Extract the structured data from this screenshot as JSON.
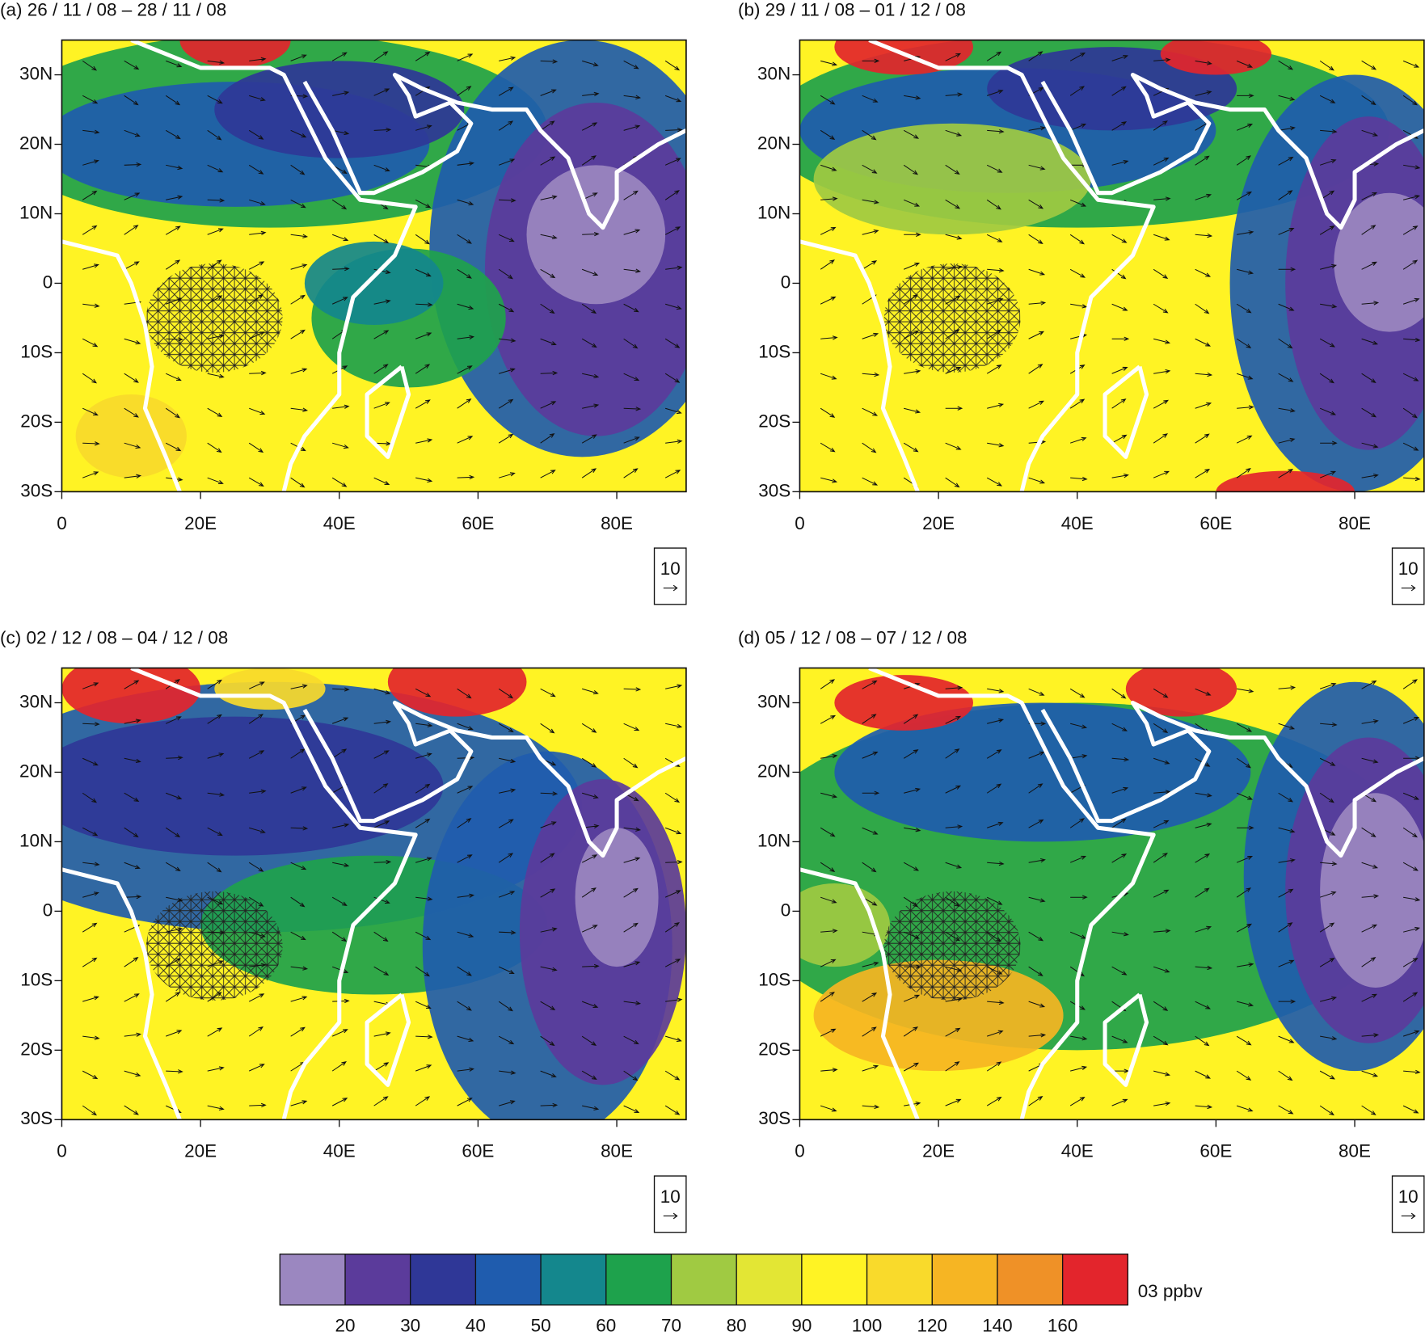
{
  "panels": [
    {
      "title": "(a) 26 / 11 / 08 – 28 / 11 / 08",
      "xlim": [
        0,
        90
      ],
      "ylim": [
        -30,
        35
      ],
      "xticks": [
        0,
        {
          "value": 20,
          "label": "20E"
        },
        {
          "value": 40,
          "label": "40E"
        },
        {
          "value": 60,
          "label": "60E"
        },
        {
          "value": 80,
          "label": "80E"
        }
      ],
      "yticks": [
        {
          "value": 30,
          "label": "30N"
        },
        {
          "value": 20,
          "label": "20N"
        },
        {
          "value": 10,
          "label": "10N"
        },
        0,
        {
          "value": -10,
          "label": "10S"
        },
        {
          "value": -20,
          "label": "20S"
        },
        {
          "value": -30,
          "label": "30S"
        }
      ],
      "vector_key": "10"
    },
    {
      "title": "(b) 29 / 11 / 08 – 01 / 12 / 08",
      "xlim": [
        0,
        90
      ],
      "ylim": [
        -30,
        35
      ],
      "xticks": [
        0,
        {
          "value": 20,
          "label": "20E"
        },
        {
          "value": 40,
          "label": "40E"
        },
        {
          "value": 60,
          "label": "60E"
        },
        {
          "value": 80,
          "label": "80E"
        }
      ],
      "yticks": [
        {
          "value": 30,
          "label": "30N"
        },
        {
          "value": 20,
          "label": "20N"
        },
        {
          "value": 10,
          "label": "10N"
        },
        0,
        {
          "value": -10,
          "label": "10S"
        },
        {
          "value": -20,
          "label": "20S"
        },
        {
          "value": -30,
          "label": "30S"
        }
      ],
      "vector_key": "10"
    },
    {
      "title": "(c) 02 / 12 / 08 – 04 / 12 / 08",
      "xlim": [
        0,
        90
      ],
      "ylim": [
        -30,
        35
      ],
      "xticks": [
        0,
        {
          "value": 20,
          "label": "20E"
        },
        {
          "value": 40,
          "label": "40E"
        },
        {
          "value": 60,
          "label": "60E"
        },
        {
          "value": 80,
          "label": "80E"
        }
      ],
      "yticks": [
        {
          "value": 30,
          "label": "30N"
        },
        {
          "value": 20,
          "label": "20N"
        },
        {
          "value": 10,
          "label": "10N"
        },
        0,
        {
          "value": -10,
          "label": "10S"
        },
        {
          "value": -20,
          "label": "20S"
        },
        {
          "value": -30,
          "label": "30S"
        }
      ],
      "vector_key": "10"
    },
    {
      "title": "(d) 05 / 12 / 08 – 07 / 12 / 08",
      "xlim": [
        0,
        90
      ],
      "ylim": [
        -30,
        35
      ],
      "xticks": [
        0,
        {
          "value": 20,
          "label": "20E"
        },
        {
          "value": 40,
          "label": "40E"
        },
        {
          "value": 60,
          "label": "60E"
        },
        {
          "value": 80,
          "label": "80E"
        }
      ],
      "yticks": [
        {
          "value": 30,
          "label": "30N"
        },
        {
          "value": 20,
          "label": "20N"
        },
        {
          "value": 10,
          "label": "10N"
        },
        0,
        {
          "value": -10,
          "label": "10S"
        },
        {
          "value": -20,
          "label": "20S"
        },
        {
          "value": -30,
          "label": "30S"
        }
      ],
      "vector_key": "10"
    }
  ],
  "colorbar": {
    "colors": [
      "#9b87c0",
      "#5b3b9b",
      "#2f3797",
      "#1f5cae",
      "#14878d",
      "#1ea24c",
      "#a0ca42",
      "#e3e634",
      "#fff324",
      "#f9da2b",
      "#f6b523",
      "#ef9127",
      "#e3252c"
    ],
    "levels": [
      20,
      30,
      40,
      50,
      60,
      70,
      80,
      90,
      100,
      120,
      140,
      160
    ],
    "unit": "03 ppbv"
  }
}
